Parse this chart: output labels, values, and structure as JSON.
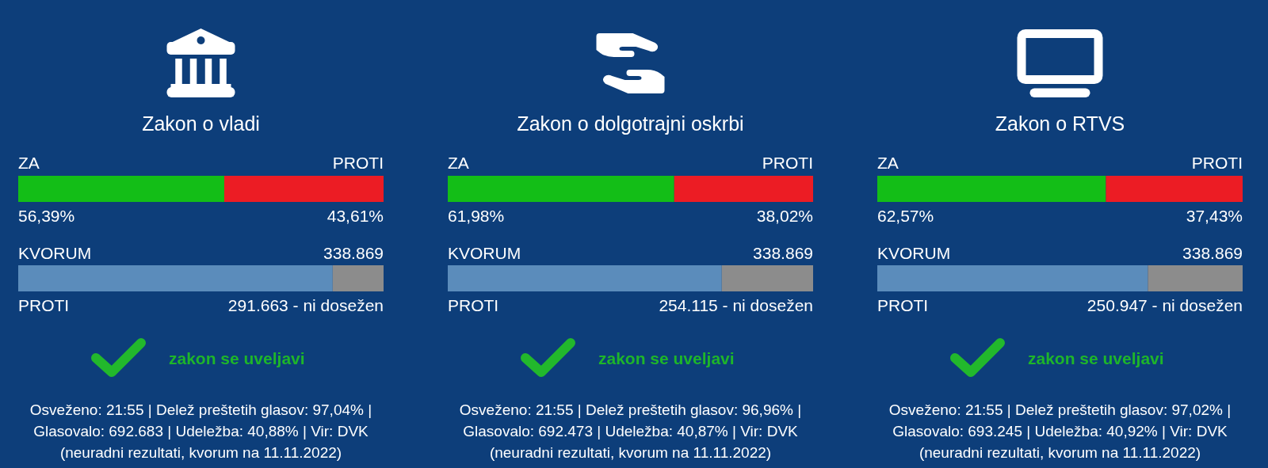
{
  "chart_data": [
    {
      "type": "bar",
      "orientation": "horizontal",
      "stacked": true,
      "title": "Zakon o vladi",
      "categories": [
        null
      ],
      "xlim": [
        0,
        100
      ],
      "series": [
        {
          "name": "ZA",
          "color": "#13be17",
          "values": [
            56.39
          ],
          "value_labels": [
            "56,39%"
          ]
        },
        {
          "name": "PROTI",
          "color": "#ec1c24",
          "values": [
            43.61
          ],
          "value_labels": [
            "43,61%"
          ]
        }
      ]
    },
    {
      "type": "bar",
      "orientation": "horizontal",
      "stacked": true,
      "categories": [
        null
      ],
      "xlim": [
        0,
        338869
      ],
      "series": [
        {
          "name": "PROTI",
          "color": "#5b8cbb",
          "values": [
            291663
          ],
          "value_labels": [
            "291.663 - ni dosežen"
          ]
        },
        {
          "color": "#8c8c8c",
          "values": [
            47206
          ]
        }
      ],
      "totals": [
        "338.869"
      ],
      "annotations": [
        "KVORUM",
        "zakon se uveljavi",
        "Osveženo: 21:55 | Delež preštetih glasov: 97,04% | Glasovalo: 692.683 | Udeležba: 40,88% | Vir: DVK (neuradni rezultati, kvorum na 11.11.2022)"
      ]
    },
    {
      "type": "bar",
      "orientation": "horizontal",
      "stacked": true,
      "title": "Zakon o dolgotrajni oskrbi",
      "categories": [
        null
      ],
      "xlim": [
        0,
        100
      ],
      "series": [
        {
          "name": "ZA",
          "color": "#13be17",
          "values": [
            61.98
          ],
          "value_labels": [
            "61,98%"
          ]
        },
        {
          "name": "PROTI",
          "color": "#ec1c24",
          "values": [
            38.02
          ],
          "value_labels": [
            "38,02%"
          ]
        }
      ]
    },
    {
      "type": "bar",
      "orientation": "horizontal",
      "stacked": true,
      "categories": [
        null
      ],
      "xlim": [
        0,
        338869
      ],
      "series": [
        {
          "name": "PROTI",
          "color": "#5b8cbb",
          "values": [
            254115
          ],
          "value_labels": [
            "254.115 - ni dosežen"
          ]
        },
        {
          "color": "#8c8c8c",
          "values": [
            84754
          ]
        }
      ],
      "totals": [
        "338.869"
      ],
      "annotations": [
        "KVORUM",
        "zakon se uveljavi",
        "Osveženo: 21:55 | Delež preštetih glasov: 96,96% | Glasovalo: 692.473 | Udeležba: 40,87% | Vir: DVK (neuradni rezultati, kvorum na 11.11.2022)"
      ]
    },
    {
      "type": "bar",
      "orientation": "horizontal",
      "stacked": true,
      "title": "Zakon o RTVS",
      "categories": [
        null
      ],
      "xlim": [
        0,
        100
      ],
      "series": [
        {
          "name": "ZA",
          "color": "#13be17",
          "values": [
            62.57
          ],
          "value_labels": [
            "62,57%"
          ]
        },
        {
          "name": "PROTI",
          "color": "#ec1c24",
          "values": [
            37.43
          ],
          "value_labels": [
            "37,43%"
          ]
        }
      ]
    },
    {
      "type": "bar",
      "orientation": "horizontal",
      "stacked": true,
      "categories": [
        null
      ],
      "xlim": [
        0,
        338869
      ],
      "series": [
        {
          "name": "PROTI",
          "color": "#5b8cbb",
          "values": [
            250947
          ],
          "value_labels": [
            "250.947 - ni dosežen"
          ]
        },
        {
          "color": "#8c8c8c",
          "values": [
            87922
          ]
        }
      ],
      "totals": [
        "338.869"
      ],
      "annotations": [
        "KVORUM",
        "zakon se uveljavi",
        "Osveženo: 21:55 | Delež preštetih glasov: 97,02% | Glasovalo: 693.245 | Udeležba: 40,92% | Vir: DVK (neuradni rezultati, kvorum na 11.11.2022)"
      ]
    }
  ]
}
